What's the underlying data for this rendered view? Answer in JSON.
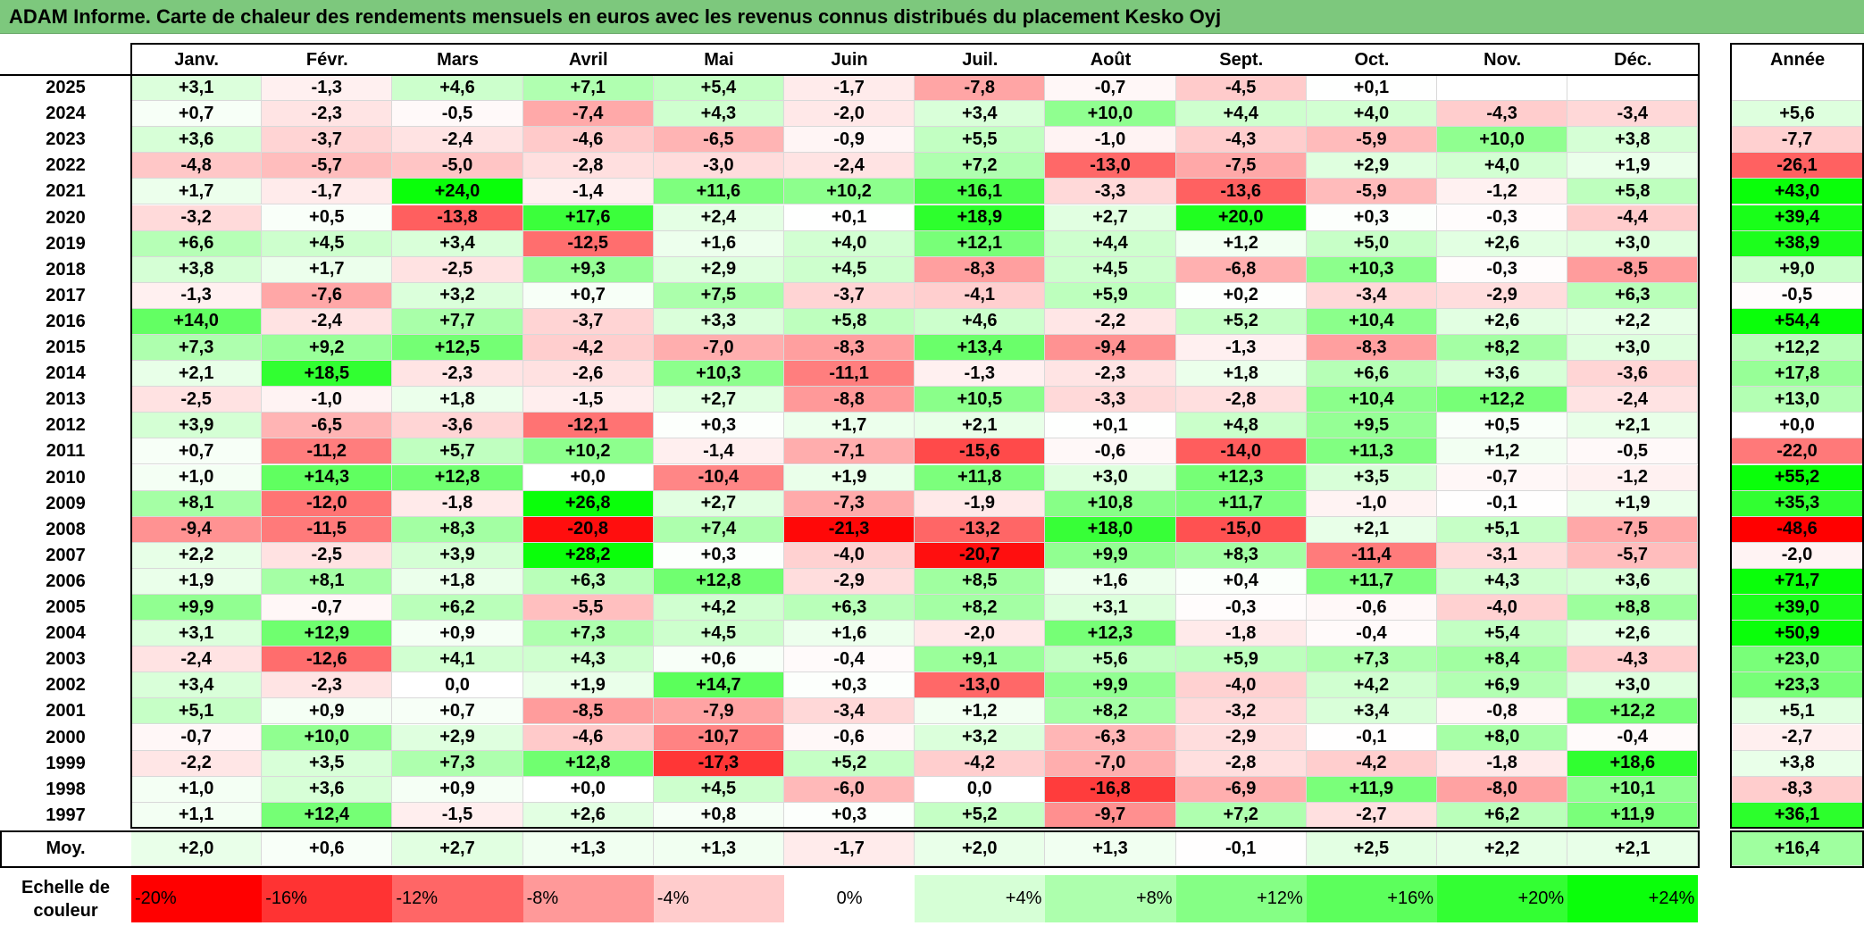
{
  "title": "ADAM Informe. Carte de chaleur des rendements mensuels en euros avec les revenus connus distribués du placement Kesko Oyj",
  "chart_data": {
    "type": "heatmap",
    "title": "ADAM Informe. Carte de chaleur des rendements mensuels en euros avec les revenus connus distribués du placement Kesko Oyj",
    "columns": [
      "Janv.",
      "Févr.",
      "Mars",
      "Avril",
      "Mai",
      "Juin",
      "Juil.",
      "Août",
      "Sept.",
      "Oct.",
      "Nov.",
      "Déc."
    ],
    "year_column_label": "Année",
    "rows": [
      {
        "year": "2025",
        "values": [
          "+3,1",
          "-1,3",
          "+4,6",
          "+7,1",
          "+5,4",
          "-1,7",
          "-7,8",
          "-0,7",
          "-4,5",
          "+0,1",
          "",
          ""
        ],
        "annual": ""
      },
      {
        "year": "2024",
        "values": [
          "+0,7",
          "-2,3",
          "-0,5",
          "-7,4",
          "+4,3",
          "-2,0",
          "+3,4",
          "+10,0",
          "+4,4",
          "+4,0",
          "-4,3",
          "-3,4"
        ],
        "annual": "+5,6"
      },
      {
        "year": "2023",
        "values": [
          "+3,6",
          "-3,7",
          "-2,4",
          "-4,6",
          "-6,5",
          "-0,9",
          "+5,5",
          "-1,0",
          "-4,3",
          "-5,9",
          "+10,0",
          "+3,8"
        ],
        "annual": "-7,7"
      },
      {
        "year": "2022",
        "values": [
          "-4,8",
          "-5,7",
          "-5,0",
          "-2,8",
          "-3,0",
          "-2,4",
          "+7,2",
          "-13,0",
          "-7,5",
          "+2,9",
          "+4,0",
          "+1,9"
        ],
        "annual": "-26,1"
      },
      {
        "year": "2021",
        "values": [
          "+1,7",
          "-1,7",
          "+24,0",
          "-1,4",
          "+11,6",
          "+10,2",
          "+16,1",
          "-3,3",
          "-13,6",
          "-5,9",
          "-1,2",
          "+5,8"
        ],
        "annual": "+43,0"
      },
      {
        "year": "2020",
        "values": [
          "-3,2",
          "+0,5",
          "-13,8",
          "+17,6",
          "+2,4",
          "+0,1",
          "+18,9",
          "+2,7",
          "+20,0",
          "+0,3",
          "-0,3",
          "-4,4"
        ],
        "annual": "+39,4"
      },
      {
        "year": "2019",
        "values": [
          "+6,6",
          "+4,5",
          "+3,4",
          "-12,5",
          "+1,6",
          "+4,0",
          "+12,1",
          "+4,4",
          "+1,2",
          "+5,0",
          "+2,6",
          "+3,0"
        ],
        "annual": "+38,9"
      },
      {
        "year": "2018",
        "values": [
          "+3,8",
          "+1,7",
          "-2,5",
          "+9,3",
          "+2,9",
          "+4,5",
          "-8,3",
          "+4,5",
          "-6,8",
          "+10,3",
          "-0,3",
          "-8,5"
        ],
        "annual": "+9,0"
      },
      {
        "year": "2017",
        "values": [
          "-1,3",
          "-7,6",
          "+3,2",
          "+0,7",
          "+7,5",
          "-3,7",
          "-4,1",
          "+5,9",
          "+0,2",
          "-3,4",
          "-2,9",
          "+6,3"
        ],
        "annual": "-0,5"
      },
      {
        "year": "2016",
        "values": [
          "+14,0",
          "-2,4",
          "+7,7",
          "-3,7",
          "+3,3",
          "+5,8",
          "+4,6",
          "-2,2",
          "+5,2",
          "+10,4",
          "+2,6",
          "+2,2"
        ],
        "annual": "+54,4"
      },
      {
        "year": "2015",
        "values": [
          "+7,3",
          "+9,2",
          "+12,5",
          "-4,2",
          "-7,0",
          "-8,3",
          "+13,4",
          "-9,4",
          "-1,3",
          "-8,3",
          "+8,2",
          "+3,0"
        ],
        "annual": "+12,2"
      },
      {
        "year": "2014",
        "values": [
          "+2,1",
          "+18,5",
          "-2,3",
          "-2,6",
          "+10,3",
          "-11,1",
          "-1,3",
          "-2,3",
          "+1,8",
          "+6,6",
          "+3,6",
          "-3,6"
        ],
        "annual": "+17,8"
      },
      {
        "year": "2013",
        "values": [
          "-2,5",
          "-1,0",
          "+1,8",
          "-1,5",
          "+2,7",
          "-8,8",
          "+10,5",
          "-3,3",
          "-2,8",
          "+10,4",
          "+12,2",
          "-2,4"
        ],
        "annual": "+13,0"
      },
      {
        "year": "2012",
        "values": [
          "+3,9",
          "-6,5",
          "-3,6",
          "-12,1",
          "+0,3",
          "+1,7",
          "+2,1",
          "+0,1",
          "+4,8",
          "+9,5",
          "+0,5",
          "+2,1"
        ],
        "annual": "+0,0"
      },
      {
        "year": "2011",
        "values": [
          "+0,7",
          "-11,2",
          "+5,7",
          "+10,2",
          "-1,4",
          "-7,1",
          "-15,6",
          "-0,6",
          "-14,0",
          "+11,3",
          "+1,2",
          "-0,5"
        ],
        "annual": "-22,0"
      },
      {
        "year": "2010",
        "values": [
          "+1,0",
          "+14,3",
          "+12,8",
          "+0,0",
          "-10,4",
          "+1,9",
          "+11,8",
          "+3,0",
          "+12,3",
          "+3,5",
          "-0,7",
          "-1,2"
        ],
        "annual": "+55,2"
      },
      {
        "year": "2009",
        "values": [
          "+8,1",
          "-12,0",
          "-1,8",
          "+26,8",
          "+2,7",
          "-7,3",
          "-1,9",
          "+10,8",
          "+11,7",
          "-1,0",
          "-0,1",
          "+1,9"
        ],
        "annual": "+35,3"
      },
      {
        "year": "2008",
        "values": [
          "-9,4",
          "-11,5",
          "+8,3",
          "-20,8",
          "+7,4",
          "-21,3",
          "-13,2",
          "+18,0",
          "-15,0",
          "+2,1",
          "+5,1",
          "-7,5"
        ],
        "annual": "-48,6"
      },
      {
        "year": "2007",
        "values": [
          "+2,2",
          "-2,5",
          "+3,9",
          "+28,2",
          "+0,3",
          "-4,0",
          "-20,7",
          "+9,9",
          "+8,3",
          "-11,4",
          "-3,1",
          "-5,7"
        ],
        "annual": "-2,0"
      },
      {
        "year": "2006",
        "values": [
          "+1,9",
          "+8,1",
          "+1,8",
          "+6,3",
          "+12,8",
          "-2,9",
          "+8,5",
          "+1,6",
          "+0,4",
          "+11,7",
          "+4,3",
          "+3,6"
        ],
        "annual": "+71,7"
      },
      {
        "year": "2005",
        "values": [
          "+9,9",
          "-0,7",
          "+6,2",
          "-5,5",
          "+4,2",
          "+6,3",
          "+8,2",
          "+3,1",
          "-0,3",
          "-0,6",
          "-4,0",
          "+8,8"
        ],
        "annual": "+39,0"
      },
      {
        "year": "2004",
        "values": [
          "+3,1",
          "+12,9",
          "+0,9",
          "+7,3",
          "+4,5",
          "+1,6",
          "-2,0",
          "+12,3",
          "-1,8",
          "-0,4",
          "+5,4",
          "+2,6"
        ],
        "annual": "+50,9"
      },
      {
        "year": "2003",
        "values": [
          "-2,4",
          "-12,6",
          "+4,1",
          "+4,3",
          "+0,6",
          "-0,4",
          "+9,1",
          "+5,6",
          "+5,9",
          "+7,3",
          "+8,4",
          "-4,3"
        ],
        "annual": "+23,0"
      },
      {
        "year": "2002",
        "values": [
          "+3,4",
          "-2,3",
          "0,0",
          "+1,9",
          "+14,7",
          "+0,3",
          "-13,0",
          "+9,9",
          "-4,0",
          "+4,2",
          "+6,9",
          "+3,0"
        ],
        "annual": "+23,3"
      },
      {
        "year": "2001",
        "values": [
          "+5,1",
          "+0,9",
          "+0,7",
          "-8,5",
          "-7,9",
          "-3,4",
          "+1,2",
          "+8,2",
          "-3,2",
          "+3,4",
          "-0,8",
          "+12,2"
        ],
        "annual": "+5,1"
      },
      {
        "year": "2000",
        "values": [
          "-0,7",
          "+10,0",
          "+2,9",
          "-4,6",
          "-10,7",
          "-0,6",
          "+3,2",
          "-6,3",
          "-2,9",
          "-0,1",
          "+8,0",
          "-0,4"
        ],
        "annual": "-2,7"
      },
      {
        "year": "1999",
        "values": [
          "-2,2",
          "+3,5",
          "+7,3",
          "+12,8",
          "-17,3",
          "+5,2",
          "-4,2",
          "-7,0",
          "-2,8",
          "-4,2",
          "-1,8",
          "+18,6"
        ],
        "annual": "+3,8"
      },
      {
        "year": "1998",
        "values": [
          "+1,0",
          "+3,6",
          "+0,9",
          "+0,0",
          "+4,5",
          "-6,0",
          "0,0",
          "-16,8",
          "-6,9",
          "+11,9",
          "-8,0",
          "+10,1"
        ],
        "annual": "-8,3"
      },
      {
        "year": "1997",
        "values": [
          "+1,1",
          "+12,4",
          "-1,5",
          "+2,6",
          "+0,8",
          "+0,3",
          "+5,2",
          "-9,7",
          "+7,2",
          "-2,7",
          "+6,2",
          "+11,9"
        ],
        "annual": "+36,1"
      }
    ],
    "average": {
      "label": "Moy.",
      "values": [
        "+2,0",
        "+0,6",
        "+2,7",
        "+1,3",
        "+1,3",
        "-1,7",
        "+2,0",
        "+1,3",
        "-0,1",
        "+2,5",
        "+2,2",
        "+2,1"
      ],
      "annual": "+16,4"
    },
    "color_scale": {
      "label": "Echelle de couleur",
      "steps": [
        {
          "label": "-20%",
          "value": -20,
          "color": "#ff0000"
        },
        {
          "label": "-16%",
          "value": -16,
          "color": "#ff3333"
        },
        {
          "label": "-12%",
          "value": -12,
          "color": "#ff6666"
        },
        {
          "label": "-8%",
          "value": -8,
          "color": "#ff9999"
        },
        {
          "label": "-4%",
          "value": -4,
          "color": "#ffcccc"
        },
        {
          "label": "0%",
          "value": 0,
          "color": "#ffffff"
        },
        {
          "label": "+4%",
          "value": 4,
          "color": "#d6ffd6"
        },
        {
          "label": "+8%",
          "value": 8,
          "color": "#adffad"
        },
        {
          "label": "+12%",
          "value": 12,
          "color": "#85ff85"
        },
        {
          "label": "+16%",
          "value": 16,
          "color": "#5cff5c"
        },
        {
          "label": "+20%",
          "value": 20,
          "color": "#33ff33"
        },
        {
          "label": "+24%",
          "value": 24,
          "color": "#0aff0a"
        }
      ]
    }
  }
}
